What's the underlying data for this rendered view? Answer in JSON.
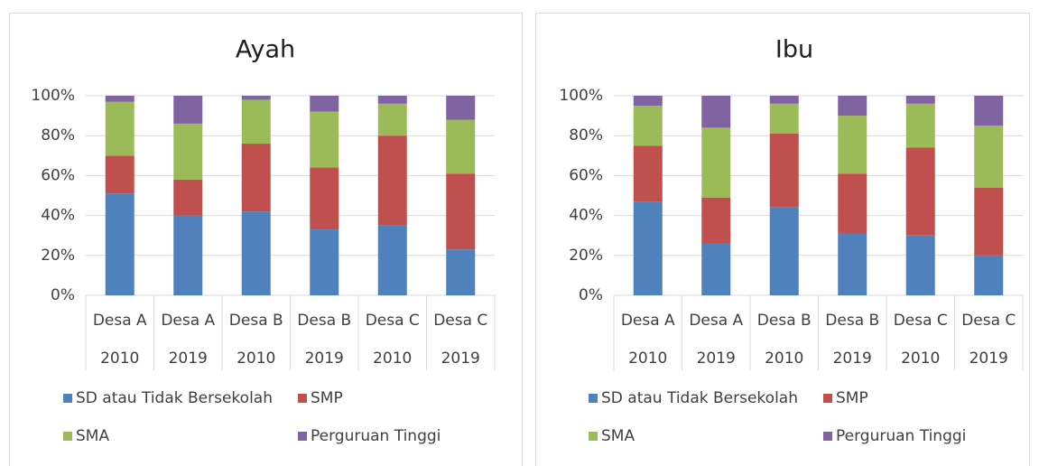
{
  "chart_data": [
    {
      "type": "stacked_bar",
      "title": "Ayah",
      "categories": [
        [
          "Desa A",
          "2010"
        ],
        [
          "Desa A",
          "2019"
        ],
        [
          "Desa B",
          "2010"
        ],
        [
          "Desa B",
          "2019"
        ],
        [
          "Desa C",
          "2010"
        ],
        [
          "Desa C",
          "2019"
        ]
      ],
      "series": [
        {
          "name": "SD atau Tidak Bersekolah",
          "color": "#4f81bd",
          "values": [
            51,
            40,
            42,
            33,
            35,
            23
          ]
        },
        {
          "name": "SMP",
          "color": "#c0504d",
          "values": [
            19,
            18,
            34,
            31,
            45,
            38
          ]
        },
        {
          "name": "SMA",
          "color": "#9bbb59",
          "values": [
            27,
            28,
            22,
            28,
            16,
            27
          ]
        },
        {
          "name": "Perguruan Tinggi",
          "color": "#8064a2",
          "values": [
            3,
            14,
            2,
            8,
            4,
            12
          ]
        }
      ],
      "ylim": [
        0,
        100
      ],
      "yticks": [
        {
          "value": 0,
          "label": "0%"
        },
        {
          "value": 20,
          "label": "20%"
        },
        {
          "value": 40,
          "label": "40%"
        },
        {
          "value": 60,
          "label": "60%"
        },
        {
          "value": 80,
          "label": "80%"
        },
        {
          "value": 100,
          "label": "100%"
        }
      ],
      "grid": true,
      "legend": "bottom"
    },
    {
      "type": "stacked_bar",
      "title": "Ibu",
      "categories": [
        [
          "Desa A",
          "2010"
        ],
        [
          "Desa A",
          "2019"
        ],
        [
          "Desa B",
          "2010"
        ],
        [
          "Desa B",
          "2019"
        ],
        [
          "Desa C",
          "2010"
        ],
        [
          "Desa C",
          "2019"
        ]
      ],
      "series": [
        {
          "name": "SD atau Tidak Bersekolah",
          "color": "#4f81bd",
          "values": [
            47,
            26,
            44,
            31,
            30,
            20
          ]
        },
        {
          "name": "SMP",
          "color": "#c0504d",
          "values": [
            28,
            23,
            37,
            30,
            44,
            34
          ]
        },
        {
          "name": "SMA",
          "color": "#9bbb59",
          "values": [
            20,
            35,
            15,
            29,
            22,
            31
          ]
        },
        {
          "name": "Perguruan Tinggi",
          "color": "#8064a2",
          "values": [
            5,
            16,
            4,
            10,
            4,
            15
          ]
        }
      ],
      "ylim": [
        0,
        100
      ],
      "yticks": [
        {
          "value": 0,
          "label": "0%"
        },
        {
          "value": 20,
          "label": "20%"
        },
        {
          "value": 40,
          "label": "40%"
        },
        {
          "value": 60,
          "label": "60%"
        },
        {
          "value": 80,
          "label": "80%"
        },
        {
          "value": 100,
          "label": "100%"
        }
      ],
      "grid": true,
      "legend": "bottom"
    }
  ]
}
